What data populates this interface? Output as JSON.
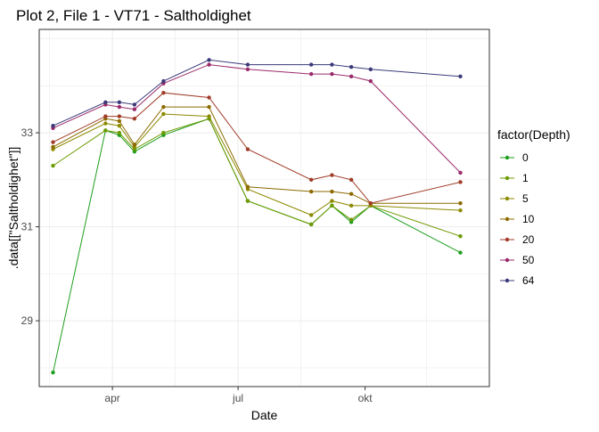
{
  "chart_data": {
    "type": "line",
    "title": "Plot 2, File 1 - VT71  -  Saltholdighet",
    "xlabel": "Date",
    "ylabel": ".data[[\"Saltholdighet\"]]",
    "x_ticks": [
      {
        "date": "2019-04-01",
        "label": "apr"
      },
      {
        "date": "2019-07-01",
        "label": "jul"
      },
      {
        "date": "2019-10-01",
        "label": "okt"
      }
    ],
    "xlim": [
      "2019-02-07",
      "2019-12-30"
    ],
    "y_ticks": [
      29,
      31,
      33
    ],
    "ylim": [
      27.6,
      35.2
    ],
    "grid": true,
    "legend": {
      "title": "factor(Depth)",
      "position": "right"
    },
    "x": [
      "2019-02-17",
      "2019-03-27",
      "2019-04-06",
      "2019-04-17",
      "2019-05-08",
      "2019-06-10",
      "2019-07-08",
      "2019-08-23",
      "2019-09-07",
      "2019-09-21",
      "2019-10-05",
      "2019-12-09"
    ],
    "series": [
      {
        "name": "0",
        "color": "#1e9e1e",
        "values": [
          27.9,
          33.05,
          32.95,
          32.6,
          32.95,
          33.3,
          31.55,
          31.05,
          31.45,
          31.1,
          31.45,
          30.45
        ]
      },
      {
        "name": "1",
        "color": "#6c9a00",
        "values": [
          32.3,
          33.05,
          33.0,
          32.65,
          33.0,
          33.3,
          31.55,
          31.05,
          31.45,
          31.15,
          31.45,
          30.8
        ]
      },
      {
        "name": "5",
        "color": "#8c8a00",
        "values": [
          32.65,
          33.2,
          33.15,
          32.7,
          33.4,
          33.35,
          31.8,
          31.25,
          31.55,
          31.45,
          31.45,
          31.35
        ]
      },
      {
        "name": "10",
        "color": "#8c6a00",
        "values": [
          32.7,
          33.3,
          33.25,
          32.75,
          33.55,
          33.55,
          31.85,
          31.75,
          31.75,
          31.7,
          31.5,
          31.5
        ]
      },
      {
        "name": "20",
        "color": "#a03c28",
        "values": [
          32.8,
          33.35,
          33.35,
          33.3,
          33.85,
          33.75,
          32.65,
          32.0,
          32.1,
          32.0,
          31.5,
          31.95
        ]
      },
      {
        "name": "50",
        "color": "#9a2a6a",
        "values": [
          33.1,
          33.6,
          33.55,
          33.5,
          34.05,
          34.45,
          34.35,
          34.25,
          34.25,
          34.2,
          34.1,
          32.15
        ]
      },
      {
        "name": "64",
        "color": "#3a3a7a",
        "values": [
          33.15,
          33.65,
          33.65,
          33.6,
          34.1,
          34.55,
          34.45,
          34.45,
          34.45,
          34.4,
          34.35,
          34.2
        ]
      }
    ]
  }
}
